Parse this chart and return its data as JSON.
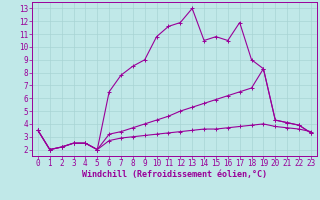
{
  "xlabel": "Windchill (Refroidissement éolien,°C)",
  "bg_color": "#c0e8e8",
  "grid_color": "#a8d4d4",
  "line_color": "#990099",
  "xlim": [
    -0.5,
    23.5
  ],
  "ylim": [
    1.5,
    13.5
  ],
  "xticks": [
    0,
    1,
    2,
    3,
    4,
    5,
    6,
    7,
    8,
    9,
    10,
    11,
    12,
    13,
    14,
    15,
    16,
    17,
    18,
    19,
    20,
    21,
    22,
    23
  ],
  "yticks": [
    2,
    3,
    4,
    5,
    6,
    7,
    8,
    9,
    10,
    11,
    12,
    13
  ],
  "line1_x": [
    0,
    1,
    2,
    3,
    4,
    5,
    6,
    7,
    8,
    9,
    10,
    11,
    12,
    13,
    14,
    15,
    16,
    17,
    18,
    19,
    20,
    21,
    22,
    23
  ],
  "line1_y": [
    3.5,
    2.0,
    2.2,
    2.5,
    2.5,
    2.0,
    6.5,
    7.8,
    8.5,
    9.0,
    10.8,
    11.6,
    11.9,
    13.0,
    10.5,
    10.8,
    10.5,
    11.9,
    9.0,
    8.3,
    4.3,
    4.1,
    3.9,
    3.3
  ],
  "line2_x": [
    0,
    1,
    2,
    3,
    4,
    5,
    6,
    7,
    8,
    9,
    10,
    11,
    12,
    13,
    14,
    15,
    16,
    17,
    18,
    19,
    20,
    21,
    22,
    23
  ],
  "line2_y": [
    3.5,
    2.0,
    2.2,
    2.5,
    2.5,
    2.0,
    3.2,
    3.4,
    3.7,
    4.0,
    4.3,
    4.6,
    5.0,
    5.3,
    5.6,
    5.9,
    6.2,
    6.5,
    6.8,
    8.3,
    4.3,
    4.1,
    3.9,
    3.3
  ],
  "line3_x": [
    0,
    1,
    2,
    3,
    4,
    5,
    6,
    7,
    8,
    9,
    10,
    11,
    12,
    13,
    14,
    15,
    16,
    17,
    18,
    19,
    20,
    21,
    22,
    23
  ],
  "line3_y": [
    3.5,
    2.0,
    2.2,
    2.5,
    2.5,
    2.0,
    2.7,
    2.9,
    3.0,
    3.1,
    3.2,
    3.3,
    3.4,
    3.5,
    3.6,
    3.6,
    3.7,
    3.8,
    3.9,
    4.0,
    3.8,
    3.7,
    3.6,
    3.4
  ],
  "marker": "+",
  "markersize": 3,
  "linewidth": 0.8,
  "tick_fontsize": 5.5,
  "xlabel_fontsize": 6.0
}
